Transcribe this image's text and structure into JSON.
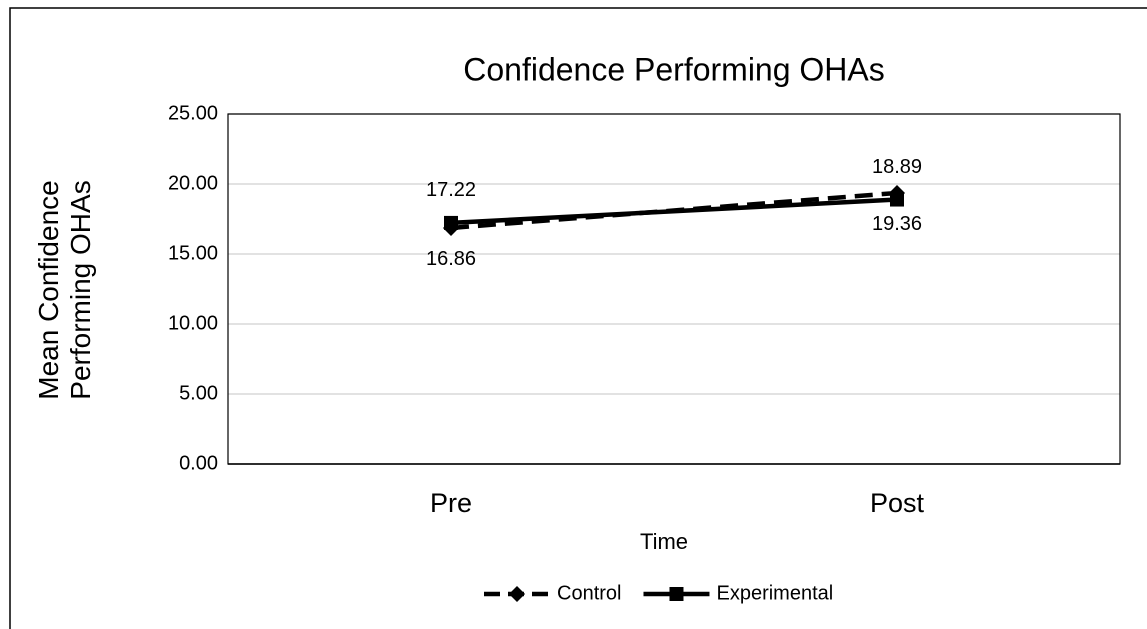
{
  "chart_data": {
    "type": "line",
    "title": "Confidence Performing OHAs",
    "x_label": "Time",
    "y_label": "Mean Confidence Performing OHAs",
    "categories": [
      "Pre",
      "Post"
    ],
    "series": [
      {
        "name": "Control",
        "color": "#000000",
        "values": [
          16.86,
          19.36
        ]
      },
      {
        "name": "Experimental",
        "color": "#000000",
        "values": [
          17.22,
          18.89
        ]
      }
    ],
    "ylim": [
      0,
      25
    ],
    "yticks": [
      {
        "value": 0,
        "label": "0.00"
      },
      {
        "value": 5,
        "label": "5.00"
      },
      {
        "value": 10,
        "label": "10.00"
      },
      {
        "value": 15,
        "label": "15.00"
      },
      {
        "value": 20,
        "label": "20.00"
      },
      {
        "value": 25,
        "label": "25.00"
      }
    ],
    "grid": true,
    "legend": "bottom"
  }
}
